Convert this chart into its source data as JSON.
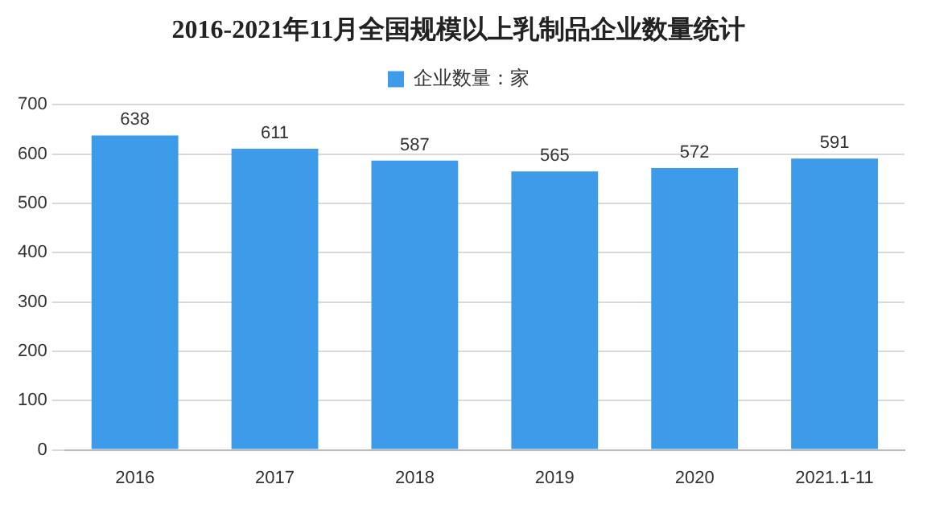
{
  "chart_data": {
    "type": "bar",
    "title": "2016-2021年11月全国规模以上乳制品企业数量统计",
    "categories": [
      "2016",
      "2017",
      "2018",
      "2019",
      "2020",
      "2021.1-11"
    ],
    "series": [
      {
        "name": "企业数量：家",
        "color": "#3d9be9",
        "values": [
          638,
          611,
          587,
          565,
          572,
          591
        ]
      }
    ],
    "ylim": [
      0,
      700
    ],
    "yticks": [
      0,
      100,
      200,
      300,
      400,
      500,
      600,
      700
    ],
    "grid": "y",
    "legend": "top",
    "data_labels": true
  }
}
